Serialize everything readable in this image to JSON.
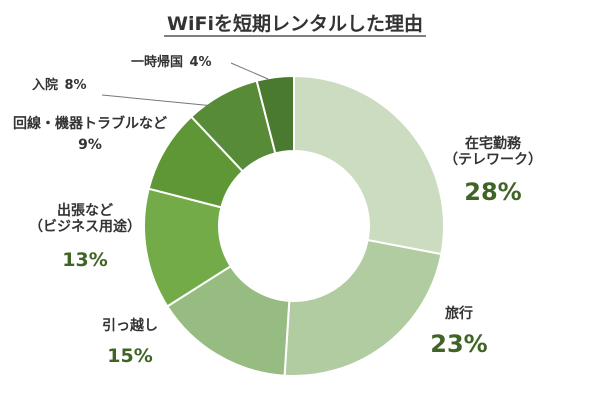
{
  "chart_data": {
    "type": "pie",
    "variant": "donut",
    "title": "WiFiを短期レンタルした理由",
    "slices": [
      {
        "label": [
          "在宅勤務",
          "（テレワーク）"
        ],
        "value": 28,
        "display": "28%",
        "color": "#cbdcc0"
      },
      {
        "label": [
          "旅行"
        ],
        "value": 23,
        "display": "23%",
        "color": "#b2cca1"
      },
      {
        "label": [
          "引っ越し"
        ],
        "value": 15,
        "display": "15%",
        "color": "#96bc81"
      },
      {
        "label": [
          "出張など",
          "（ビジネス用途）"
        ],
        "value": 13,
        "display": "13%",
        "color": "#72ab48"
      },
      {
        "label": [
          "回線・機器トラブルなど"
        ],
        "value": 9,
        "display": "9%",
        "color": "#5f9636"
      },
      {
        "label": [
          "入院"
        ],
        "value": 8,
        "display": "8%",
        "color": "#578b37"
      },
      {
        "label": [
          "一時帰国"
        ],
        "value": 4,
        "display": "4%",
        "color": "#4a7a30"
      }
    ],
    "legend": "none"
  }
}
